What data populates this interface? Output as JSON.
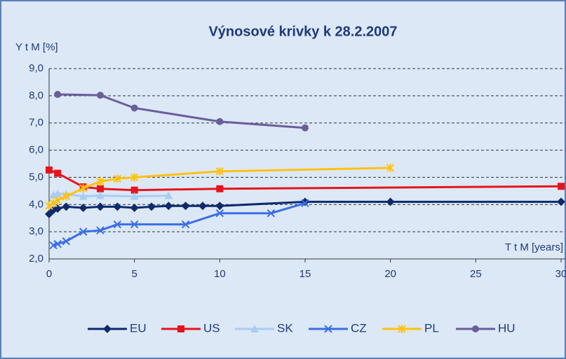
{
  "chart_data": {
    "type": "line",
    "title": "Výnosové krivky k 28.2.2007",
    "y_label": "Y t M [%]",
    "x_label": "T t M [years]",
    "xlim": [
      0,
      30
    ],
    "xticks": [
      0,
      5,
      10,
      15,
      20,
      25,
      30
    ],
    "ylim": [
      2,
      9
    ],
    "yticks": [
      {
        "value": 2,
        "label": "2,0"
      },
      {
        "value": 3,
        "label": "3,0"
      },
      {
        "value": 4,
        "label": "4,0"
      },
      {
        "value": 5,
        "label": "5,0"
      },
      {
        "value": 6,
        "label": "6,0"
      },
      {
        "value": 7,
        "label": "7,0"
      },
      {
        "value": 8,
        "label": "8,0"
      },
      {
        "value": 9,
        "label": "9,0"
      }
    ],
    "grid": true,
    "legend": "bottom",
    "series": [
      {
        "name": "EU",
        "color": "#0d2a6b",
        "marker": "diamond",
        "x": [
          0,
          0.25,
          0.5,
          1,
          2,
          3,
          4,
          5,
          6,
          7,
          8,
          9,
          10,
          15,
          20,
          30
        ],
        "values": [
          3.65,
          3.8,
          3.85,
          3.92,
          3.88,
          3.92,
          3.92,
          3.88,
          3.92,
          3.95,
          3.95,
          3.95,
          3.95,
          4.1,
          4.1,
          4.1
        ]
      },
      {
        "name": "US",
        "color": "#e8131b",
        "marker": "square",
        "x": [
          0,
          0.5,
          2,
          3,
          5,
          10,
          30
        ],
        "values": [
          5.27,
          5.15,
          4.65,
          4.58,
          4.53,
          4.58,
          4.67
        ]
      },
      {
        "name": "SK",
        "color": "#a9cdf2",
        "marker": "triangle",
        "x": [
          0.25,
          0.5,
          1,
          2,
          3,
          5,
          7
        ],
        "values": [
          4.35,
          4.4,
          4.38,
          4.3,
          4.33,
          4.3,
          4.33
        ]
      },
      {
        "name": "CZ",
        "color": "#3a6ee8",
        "marker": "x",
        "x": [
          0.25,
          0.5,
          1,
          2,
          3,
          4,
          5,
          8,
          10,
          13,
          15
        ],
        "values": [
          2.5,
          2.55,
          2.65,
          3.0,
          3.05,
          3.27,
          3.27,
          3.27,
          3.68,
          3.68,
          4.05
        ]
      },
      {
        "name": "PL",
        "color": "#ffc20e",
        "marker": "star",
        "x": [
          0,
          0.25,
          0.5,
          1,
          2,
          3,
          4,
          5,
          10,
          20
        ],
        "values": [
          3.95,
          4.05,
          4.15,
          4.3,
          4.6,
          4.85,
          4.95,
          5.0,
          5.22,
          5.35
        ]
      },
      {
        "name": "HU",
        "color": "#6a5e9a",
        "marker": "circle",
        "x": [
          0.5,
          3,
          5,
          10,
          15
        ],
        "values": [
          8.05,
          8.02,
          7.55,
          7.05,
          6.82
        ]
      }
    ]
  }
}
